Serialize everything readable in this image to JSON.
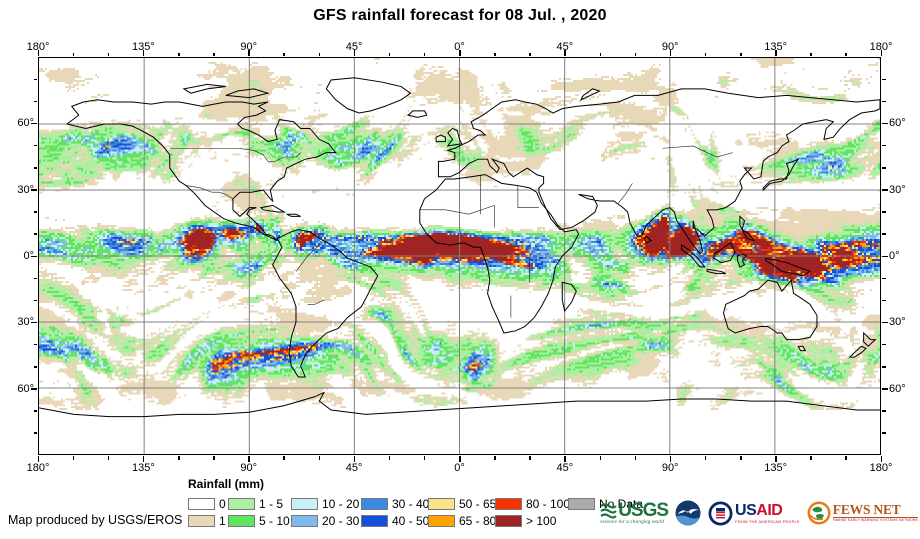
{
  "title": "GFS rainfall forecast for 08 Jul. , 2020",
  "axes": {
    "lon_labels_top": [
      "180°",
      "135°",
      "90°",
      "45°",
      "0°",
      "45°",
      "90°",
      "135°",
      "180°"
    ],
    "lon_labels_bottom": [
      "180°",
      "135°",
      "90°",
      "45°",
      "0°",
      "45°",
      "90°",
      "135°",
      "180°"
    ],
    "lat_labels_left": [
      "60°",
      "30°",
      "0°",
      "30°",
      "60°"
    ],
    "lat_labels_right": [
      "60°",
      "30°",
      "0°",
      "30°",
      "60°"
    ]
  },
  "legend": {
    "title": "Rainfall (mm)",
    "row1": [
      {
        "label": "0",
        "color": "#FFFFFF"
      },
      {
        "label": "1 - 5",
        "color": "#AAF0A0"
      },
      {
        "label": "10 - 20",
        "color": "#C8EEF8"
      },
      {
        "label": "30 - 40",
        "color": "#3A8BE0"
      },
      {
        "label": "50 - 65",
        "color": "#F9E288"
      },
      {
        "label": "80 - 100",
        "color": "#F93000"
      },
      {
        "label": "No Data",
        "color": "#ABABAB"
      }
    ],
    "row2": [
      {
        "label": "1",
        "color": "#E8D8B8"
      },
      {
        "label": "5 - 10",
        "color": "#60E560"
      },
      {
        "label": "20 - 30",
        "color": "#80B9EE"
      },
      {
        "label": "40 - 50",
        "color": "#1450D8"
      },
      {
        "label": "65 - 80",
        "color": "#FFA300"
      },
      {
        "label": "> 100",
        "color": "#A02424"
      }
    ]
  },
  "attribution": "Map produced by USGS/EROS",
  "logos": {
    "usgs": {
      "wordmark": "USGS",
      "tagline": "science for a changing world",
      "color": "#1b7340"
    },
    "noaa": {
      "name": "NOAA emblem",
      "color": "#15396b"
    },
    "usaid": {
      "word_us": "US",
      "word_aid": "AID",
      "tagline": "FROM THE AMERICAN PEOPLE",
      "color": "#07296b"
    },
    "fewsnet": {
      "wordmark": "FEWS NET",
      "tagline": "FAMINE EARLY WARNING SYSTEMS NETWORK",
      "color": "#b4561c"
    }
  },
  "map_style": {
    "grid_color": "#808080",
    "coast_color": "#000000",
    "frame_color": "#000000"
  }
}
